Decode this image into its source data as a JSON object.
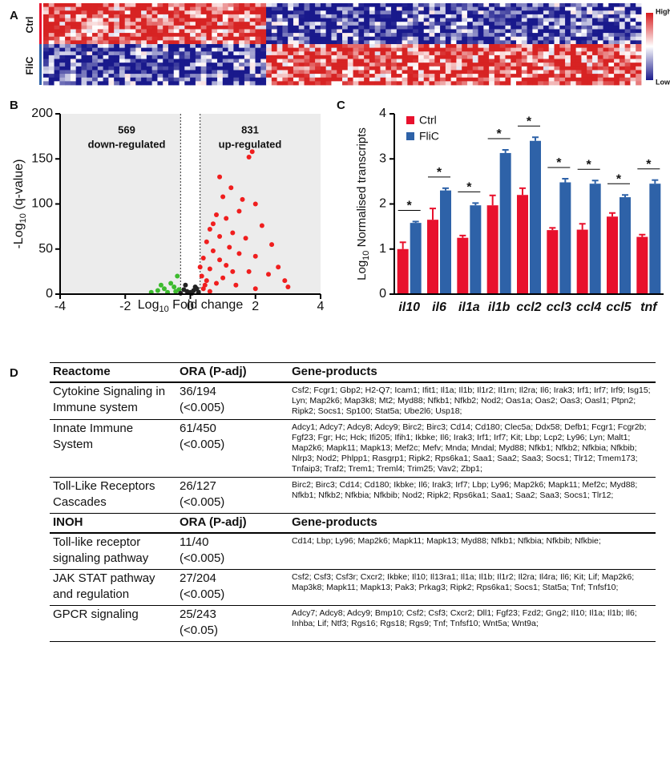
{
  "panel_labels": [
    "A",
    "B",
    "C",
    "D"
  ],
  "heatmap": {
    "row_labels": [
      "Ctrl",
      "FliC"
    ],
    "scale_labels": [
      "High",
      "Low"
    ]
  },
  "chart_data": [
    {
      "type": "scatter",
      "xlabel": {
        "text": "Log",
        "sub": "10",
        "rest": " Fold change"
      },
      "ylabel": {
        "text": "-Log",
        "sub": "10",
        "rest": " (q-value)"
      },
      "xlim": [
        -4,
        4
      ],
      "xticks": [
        -4,
        -2,
        0,
        2,
        4
      ],
      "ylim": [
        0,
        200
      ],
      "yticks": [
        0,
        50,
        100,
        150,
        200
      ],
      "thresholds": [
        -0.3,
        0.3
      ],
      "annotations": [
        {
          "count": 569,
          "text": "down-regulated"
        },
        {
          "count": 831,
          "text": "up-regulated"
        }
      ],
      "series": [
        {
          "color": "#f01e1e",
          "x": [
            1.9,
            1.8,
            0.9,
            1.25,
            1.0,
            1.6,
            2.0,
            1.5,
            0.8,
            1.1,
            0.7,
            2.2,
            0.6,
            1.3,
            0.9,
            1.7,
            0.5,
            2.5,
            1.2,
            0.7,
            1.5,
            2.0,
            0.4,
            0.9,
            2.7,
            1.1,
            0.6,
            1.8,
            2.4,
            3.0,
            0.35,
            0.5,
            0.8,
            1.4,
            2.0,
            0.4,
            0.6,
            1.0,
            1.3,
            2.9,
            0.3,
            0.45
          ],
          "y": [
            158,
            152,
            130,
            118,
            108,
            105,
            100,
            92,
            88,
            84,
            78,
            76,
            72,
            68,
            64,
            62,
            58,
            55,
            52,
            48,
            45,
            42,
            40,
            38,
            30,
            32,
            28,
            25,
            22,
            8,
            20,
            15,
            12,
            10,
            6,
            6,
            3,
            18,
            25,
            15,
            30,
            10
          ]
        },
        {
          "color": "#3dbb2e",
          "x": [
            -0.4,
            -0.6,
            -0.5,
            -0.8,
            -1.0,
            -0.35,
            -0.7,
            -0.45,
            -1.2,
            -0.9
          ],
          "y": [
            20,
            12,
            8,
            6,
            4,
            5,
            2,
            3,
            2,
            10
          ]
        },
        {
          "color": "#222222",
          "x": [
            -0.2,
            -0.1,
            0,
            0.1,
            0.2,
            -0.15,
            0.15,
            0.05,
            -0.3,
            0.25
          ],
          "y": [
            5,
            3,
            2,
            4,
            6,
            10,
            8,
            1,
            1,
            2
          ]
        }
      ]
    },
    {
      "type": "bar",
      "ylabel": {
        "text": "Log",
        "sub": "10",
        "rest": " Normalised transcripts"
      },
      "categories": [
        "il10",
        "il6",
        "il1a",
        "il1b",
        "ccl2",
        "ccl3",
        "ccl4",
        "ccl5",
        "tnf"
      ],
      "ylim": [
        0,
        4
      ],
      "yticks": [
        0,
        1,
        2,
        3,
        4
      ],
      "series": [
        {
          "name": "Ctrl",
          "color": "#e8112d",
          "values": [
            1.0,
            1.65,
            1.25,
            1.97,
            2.2,
            1.42,
            1.43,
            1.72,
            1.27
          ],
          "errors": [
            0.15,
            0.25,
            0.05,
            0.22,
            0.15,
            0.05,
            0.13,
            0.08,
            0.05
          ]
        },
        {
          "name": "FliC",
          "color": "#2e62a8",
          "values": [
            1.58,
            2.3,
            1.97,
            3.13,
            3.4,
            2.48,
            2.45,
            2.15,
            2.45
          ],
          "errors": [
            0.03,
            0.05,
            0.05,
            0.07,
            0.08,
            0.08,
            0.07,
            0.05,
            0.08
          ]
        }
      ],
      "significance": [
        "*",
        "*",
        "*",
        "*",
        "*",
        "*",
        "*",
        "*",
        "*"
      ]
    }
  ],
  "table": {
    "sections": [
      {
        "header": [
          "Reactome",
          "ORA (P-adj)",
          "Gene-products"
        ],
        "rows": [
          {
            "pathway": "Cytokine Signaling in Immune system",
            "count": "36/194",
            "padj": "(<0.005)",
            "genes": "Csf2; Fcgr1; Gbp2; H2-Q7; Icam1; Ifit1; Il1a; Il1b; Il1r2; Il1rn; Il2ra; Il6; Irak3; Irf1; Irf7; Irf9; Isg15; Lyn; Map2k6; Map3k8; Mt2; Myd88; Nfkb1; Nfkb2; Nod2; Oas1a; Oas2; Oas3; Oasl1; Ptpn2; Ripk2; Socs1; Sp100; Stat5a; Ube2l6; Usp18;"
          },
          {
            "pathway": "Innate Immune System",
            "count": "61/450",
            "padj": "(<0.005)",
            "genes": "Adcy1; Adcy7; Adcy8; Adcy9; Birc2; Birc3; Cd14; Cd180; Clec5a; Ddx58; Defb1; Fcgr1; Fcgr2b; Fgf23; Fgr; Hc; Hck; Ifi205; Ifih1; Ikbke; Il6; Irak3; Irf1; Irf7; Kit; Lbp; Lcp2; Ly96; Lyn; Malt1; Map2k6; Mapk11; Mapk13; Mef2c; Mefv; Mnda; Mndal; Myd88; Nfkb1; Nfkb2; Nfkbia; Nfkbib; Nlrp3; Nod2; Phlpp1; Rasgrp1; Ripk2; Rps6ka1; Saa1; Saa2; Saa3; Socs1; Tlr12; Tmem173; Tnfaip3; Traf2; Trem1; Treml4; Trim25; Vav2; Zbp1;"
          },
          {
            "pathway": "Toll-Like Receptors Cascades",
            "count": "26/127",
            "padj": "(<0.005)",
            "genes": "Birc2; Birc3; Cd14; Cd180; Ikbke; Il6; Irak3; Irf7; Lbp; Ly96; Map2k6; Mapk11; Mef2c; Myd88; Nfkb1; Nfkb2; Nfkbia; Nfkbib; Nod2; Ripk2; Rps6ka1; Saa1; Saa2; Saa3; Socs1; Tlr12;"
          }
        ]
      },
      {
        "header": [
          "INOH",
          "ORA (P-adj)",
          "Gene-products"
        ],
        "rows": [
          {
            "pathway": "Toll-like receptor signaling pathway",
            "count": "11/40",
            "padj": "(<0.005)",
            "genes": "Cd14; Lbp; Ly96; Map2k6; Mapk11; Mapk13; Myd88; Nfkb1; Nfkbia; Nfkbib; Nfkbie;"
          },
          {
            "pathway": "JAK STAT pathway and regulation",
            "count": "27/204",
            "padj": "(<0.005)",
            "genes": "Csf2; Csf3; Csf3r; Cxcr2; Ikbke; Il10; Il13ra1; Il1a; Il1b; Il1r2; Il2ra; Il4ra; Il6; Kit; Lif; Map2k6; Map3k8; Mapk11; Mapk13; Pak3; Prkag3; Ripk2; Rps6ka1; Socs1; Stat5a; Tnf; Tnfsf10;"
          },
          {
            "pathway": "GPCR signaling",
            "count": "25/243",
            "padj": "(<0.05)",
            "genes": "Adcy7; Adcy8; Adcy9; Bmp10; Csf2; Csf3; Cxcr2; Dll1; Fgf23; Fzd2; Gng2; Il10; Il1a; Il1b; Il6; Inhba; Lif; Ntf3; Rgs16; Rgs18; Rgs9; Tnf; Tnfsf10; Wnt5a; Wnt9a;"
          }
        ]
      }
    ]
  }
}
